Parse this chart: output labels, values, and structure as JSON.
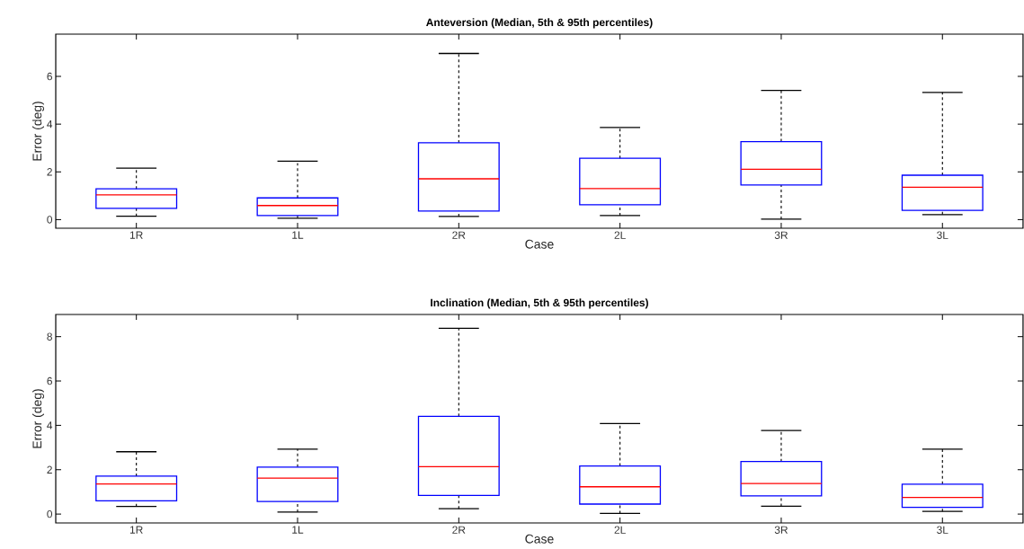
{
  "chart_data": [
    {
      "type": "box",
      "title": "**Anteversion (Median, 5th & 95th percentiles)**",
      "xlabel": "Case",
      "ylabel": "Error (deg)",
      "categories": [
        "1R",
        "1L",
        "2R",
        "2L",
        "3R",
        "3L"
      ],
      "ylim": [
        -0.36,
        7.77
      ],
      "yticks": [
        0,
        2,
        4,
        6
      ],
      "grid": false,
      "series": [
        {
          "color": "#0000ff",
          "boxes": [
            {
              "low": 0.14,
              "q1": 0.47,
              "median": 1.04,
              "q3": 1.29,
              "high": 2.16
            },
            {
              "low": 0.06,
              "q1": 0.17,
              "median": 0.59,
              "q3": 0.91,
              "high": 2.45
            },
            {
              "low": 0.13,
              "q1": 0.36,
              "median": 1.71,
              "q3": 3.22,
              "high": 6.96
            },
            {
              "low": 0.17,
              "q1": 0.62,
              "median": 1.3,
              "q3": 2.57,
              "high": 3.86
            },
            {
              "low": 0.02,
              "q1": 1.45,
              "median": 2.11,
              "q3": 3.27,
              "high": 5.41
            },
            {
              "low": 0.21,
              "q1": 0.39,
              "median": 1.36,
              "q3": 1.86,
              "high": 5.33
            }
          ]
        }
      ]
    },
    {
      "type": "box",
      "title": "**Inclination (Median, 5th & 95th percentiles)**",
      "xlabel": "Case",
      "ylabel": "Error (deg)",
      "categories": [
        "1R",
        "1L",
        "2R",
        "2L",
        "3R",
        "3L"
      ],
      "ylim": [
        -0.4,
        9.0
      ],
      "yticks": [
        0,
        2,
        4,
        6,
        8
      ],
      "grid": false,
      "series": [
        {
          "color": "#0000ff",
          "boxes": [
            {
              "low": 0.34,
              "q1": 0.6,
              "median": 1.36,
              "q3": 1.71,
              "high": 2.81
            },
            {
              "low": 0.09,
              "q1": 0.57,
              "median": 1.62,
              "q3": 2.12,
              "high": 2.93
            },
            {
              "low": 0.24,
              "q1": 0.84,
              "median": 2.14,
              "q3": 4.41,
              "high": 8.38
            },
            {
              "low": 0.03,
              "q1": 0.45,
              "median": 1.23,
              "q3": 2.17,
              "high": 4.08
            },
            {
              "low": 0.35,
              "q1": 0.82,
              "median": 1.38,
              "q3": 2.37,
              "high": 3.77
            },
            {
              "low": 0.12,
              "q1": 0.3,
              "median": 0.75,
              "q3": 1.35,
              "high": 2.93
            }
          ]
        }
      ]
    }
  ]
}
